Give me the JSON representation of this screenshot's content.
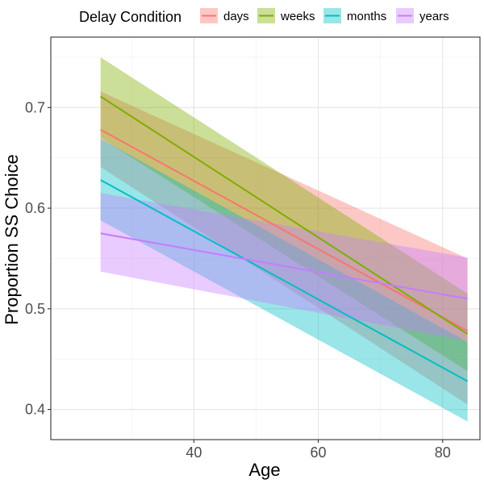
{
  "chart_data": {
    "type": "line",
    "xlabel": "Age",
    "ylabel": "Proportion SS Choice",
    "xlim": [
      17,
      86
    ],
    "ylim": [
      0.37,
      0.77
    ],
    "x_ticks": [
      40,
      60,
      80
    ],
    "y_ticks": [
      0.4,
      0.5,
      0.6,
      0.7
    ],
    "x_tick_labels": [
      "40",
      "60",
      "80"
    ],
    "y_tick_labels": [
      "0.4",
      "0.5",
      "0.6",
      "0.7"
    ],
    "grid": true,
    "legend": {
      "title": "Delay Condition",
      "position": "top"
    },
    "series": [
      {
        "name": "days",
        "color": "#F8766D",
        "x": [
          25,
          84
        ],
        "y": [
          0.678,
          0.478
        ],
        "ci_lower": [
          0.641,
          0.405
        ],
        "ci_upper": [
          0.716,
          0.55
        ]
      },
      {
        "name": "weeks",
        "color": "#7CAE00",
        "x": [
          25,
          84
        ],
        "y": [
          0.711,
          0.475
        ],
        "ci_lower": [
          0.67,
          0.438
        ],
        "ci_upper": [
          0.75,
          0.515
        ]
      },
      {
        "name": "months",
        "color": "#00BFC4",
        "x": [
          25,
          84
        ],
        "y": [
          0.628,
          0.428
        ],
        "ci_lower": [
          0.588,
          0.388
        ],
        "ci_upper": [
          0.669,
          0.467
        ]
      },
      {
        "name": "years",
        "color": "#C77CFF",
        "x": [
          25,
          84
        ],
        "y": [
          0.575,
          0.51
        ],
        "ci_lower": [
          0.537,
          0.468
        ],
        "ci_upper": [
          0.615,
          0.551
        ]
      }
    ]
  }
}
